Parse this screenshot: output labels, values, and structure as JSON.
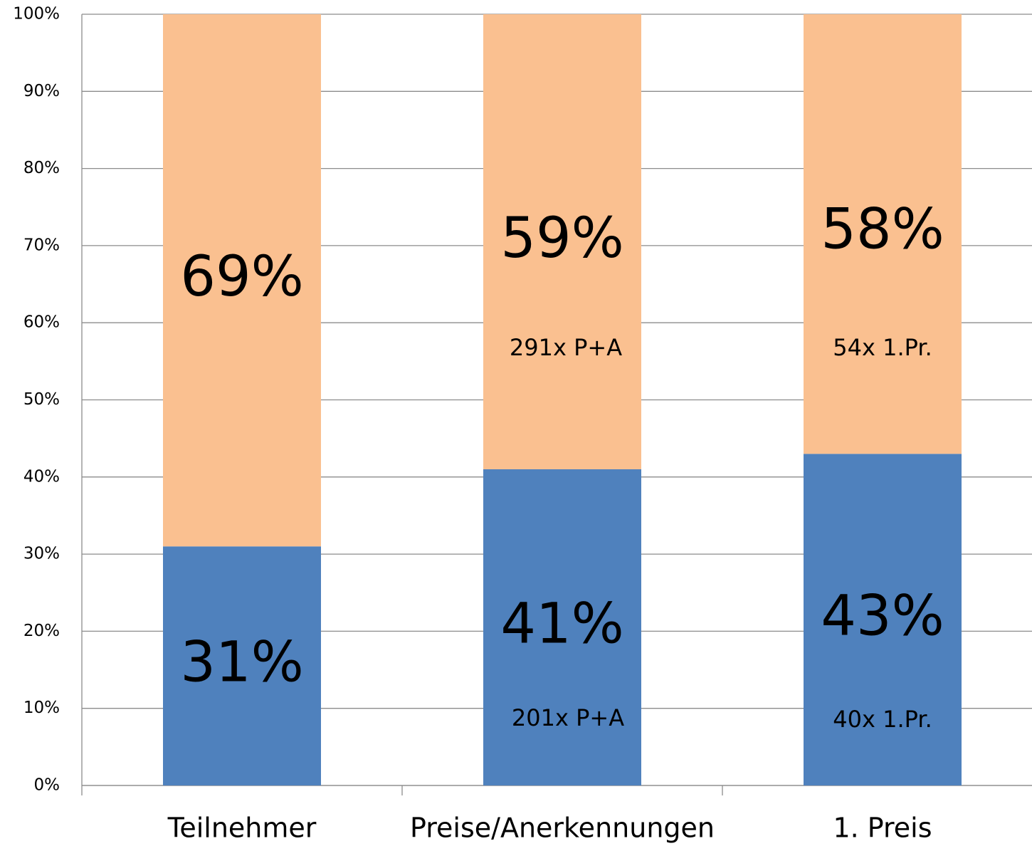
{
  "chart_data": {
    "type": "stacked_bar",
    "categories": [
      "Teilnehmer",
      "Preise/Anerkennungen",
      "1. Preis"
    ],
    "series": [
      {
        "color": "#4f81bd",
        "values": [
          31,
          41,
          43
        ],
        "value_labels": [
          "31%",
          "41%",
          "43%"
        ]
      },
      {
        "color": "#fac090",
        "values": [
          69,
          59,
          58
        ],
        "value_labels": [
          "69%",
          "59%",
          "58%"
        ]
      }
    ],
    "annotations": [
      "291x P+A",
      "201x P+A",
      "54x 1.Pr.",
      "40x 1.Pr."
    ],
    "ylim": [
      0,
      100
    ],
    "yticks": [
      {
        "value": 0,
        "label": "0%"
      },
      {
        "value": 10,
        "label": "10%"
      },
      {
        "value": 20,
        "label": "20%"
      },
      {
        "value": 30,
        "label": "30%"
      },
      {
        "value": 40,
        "label": "40%"
      },
      {
        "value": 50,
        "label": "50%"
      },
      {
        "value": 60,
        "label": "60%"
      },
      {
        "value": 70,
        "label": "70%"
      },
      {
        "value": 80,
        "label": "80%"
      },
      {
        "value": 90,
        "label": "90%"
      },
      {
        "value": 100,
        "label": "100%"
      }
    ],
    "grid": true
  }
}
